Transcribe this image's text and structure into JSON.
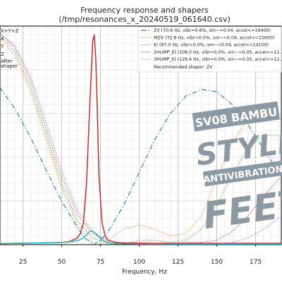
{
  "chart_data": {
    "type": "line",
    "title": "Frequency response and shapers",
    "subtitle": "(/tmp/resonances_x_20240519_061640.csv)",
    "xlabel": "Frequency, Hz",
    "xlim": [
      0,
      200
    ],
    "ylim": [
      0,
      1.0
    ],
    "x_ticks": [
      25,
      50,
      75,
      100,
      125,
      150,
      175
    ],
    "grid": true,
    "legend_position": "top-right",
    "left_legend_labels": [
      "X+Y+Z",
      "X",
      "Y",
      "Z",
      "After",
      "shaper"
    ],
    "recommended": "Recommended shaper: ZV",
    "series": [
      {
        "name": "X+Y+Z",
        "color": "#d62728",
        "style": "solid",
        "x": [
          0,
          10,
          20,
          30,
          40,
          50,
          55,
          60,
          62,
          64,
          66,
          68,
          70,
          71,
          72,
          73,
          74,
          76,
          78,
          80,
          85,
          90,
          100,
          110,
          120,
          130,
          140,
          150,
          160,
          170,
          180,
          190,
          200
        ],
        "y": [
          0.005,
          0.005,
          0.006,
          0.007,
          0.008,
          0.01,
          0.014,
          0.03,
          0.05,
          0.1,
          0.28,
          0.62,
          0.93,
          0.96,
          0.85,
          0.6,
          0.32,
          0.1,
          0.04,
          0.02,
          0.01,
          0.008,
          0.007,
          0.006,
          0.006,
          0.006,
          0.006,
          0.006,
          0.006,
          0.006,
          0.006,
          0.006,
          0.006
        ]
      },
      {
        "name": "After shaper",
        "color": "#17becf",
        "style": "solid",
        "x": [
          0,
          10,
          20,
          30,
          40,
          50,
          55,
          60,
          64,
          66,
          68,
          70,
          72,
          74,
          76,
          78,
          80,
          85,
          90,
          100,
          120,
          140,
          160,
          180,
          200
        ],
        "y": [
          0.005,
          0.005,
          0.006,
          0.007,
          0.008,
          0.01,
          0.012,
          0.018,
          0.03,
          0.045,
          0.06,
          0.062,
          0.05,
          0.035,
          0.022,
          0.013,
          0.008,
          0.005,
          0.004,
          0.003,
          0.003,
          0.003,
          0.003,
          0.003,
          0.003
        ]
      },
      {
        "name": "ZV (70.6 Hz, vibr=0.6%, sm~=0.04, accel<=19400)",
        "color": "#1f77b4",
        "style": "dashdot",
        "x": [
          0,
          10,
          20,
          30,
          40,
          50,
          60,
          65,
          70.6,
          75,
          80,
          90,
          100,
          110,
          120,
          130,
          140,
          150,
          160,
          170,
          180,
          190,
          200
        ],
        "y": [
          0.78,
          0.72,
          0.62,
          0.49,
          0.34,
          0.2,
          0.08,
          0.03,
          0.0,
          0.02,
          0.06,
          0.18,
          0.33,
          0.48,
          0.6,
          0.68,
          0.71,
          0.7,
          0.64,
          0.55,
          0.44,
          0.33,
          0.24
        ]
      },
      {
        "name": "MZV (72.8 Hz, vibr=0.0%, sm~=0.04, accel<=15600)",
        "color": "#ff7f0e",
        "style": "dotted",
        "x": [
          0,
          10,
          20,
          30,
          40,
          50,
          60,
          70,
          72.8,
          75,
          80,
          90,
          100,
          110,
          120,
          130,
          140,
          150,
          160,
          170,
          180,
          190,
          200
        ],
        "y": [
          0.98,
          0.95,
          0.86,
          0.7,
          0.48,
          0.26,
          0.09,
          0.01,
          0.0,
          0.005,
          0.02,
          0.07,
          0.09,
          0.07,
          0.04,
          0.05,
          0.13,
          0.3,
          0.47,
          0.57,
          0.6,
          0.58,
          0.52
        ]
      },
      {
        "name": "EI (87.0 Hz, vibr=0.0%, sm~=0.04, accel<=14100)",
        "color": "#2ca02c",
        "style": "dotted",
        "x": [
          0,
          10,
          20,
          30,
          40,
          50,
          60,
          70,
          80,
          87,
          95,
          100,
          110,
          120,
          130,
          140,
          150,
          160,
          170,
          180,
          190,
          200
        ],
        "y": [
          0.98,
          0.96,
          0.88,
          0.72,
          0.5,
          0.28,
          0.11,
          0.03,
          0.01,
          0.0,
          0.01,
          0.02,
          0.02,
          0.01,
          0.02,
          0.07,
          0.18,
          0.32,
          0.44,
          0.5,
          0.5,
          0.46
        ]
      },
      {
        "name": "2HUMP_EI (108.0 Hz, vibr=0.0%, sm~=0.05, accel<=11...",
        "color": "#d62728",
        "style": "dotted",
        "x": [
          0,
          10,
          20,
          30,
          40,
          50,
          60,
          70,
          80,
          90,
          100,
          108,
          115,
          120,
          130,
          140,
          150,
          160,
          170,
          180,
          190,
          200
        ],
        "y": [
          0.99,
          0.97,
          0.9,
          0.75,
          0.53,
          0.31,
          0.14,
          0.05,
          0.015,
          0.005,
          0.002,
          0.0,
          0.002,
          0.005,
          0.01,
          0.01,
          0.02,
          0.06,
          0.13,
          0.22,
          0.3,
          0.36
        ]
      },
      {
        "name": "3HUMP_EI (129.4 Hz, vibr=0.0%, sm~=0.05, accel<=12...",
        "color": "#9467bd",
        "style": "dotted",
        "x": [
          0,
          10,
          20,
          30,
          40,
          50,
          60,
          70,
          80,
          90,
          100,
          110,
          120,
          129.4,
          140,
          150,
          160,
          170,
          180,
          190,
          200
        ],
        "y": [
          0.99,
          0.97,
          0.91,
          0.77,
          0.56,
          0.34,
          0.16,
          0.06,
          0.02,
          0.006,
          0.002,
          0.001,
          0.0005,
          0.0,
          0.001,
          0.003,
          0.01,
          0.03,
          0.07,
          0.12,
          0.18
        ]
      }
    ]
  },
  "overlay": {
    "line1": "SV08 BAMBU",
    "line2": "STYLE",
    "line3": "ANTIVIBRATION",
    "line4": "FEET",
    "color": "#8c99a2"
  }
}
